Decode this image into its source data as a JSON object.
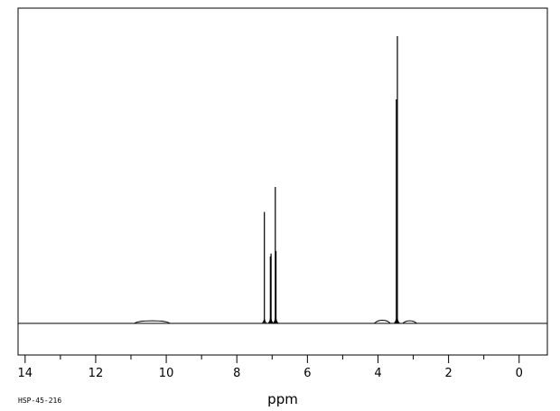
{
  "chart_data": {
    "type": "line",
    "title": "",
    "xlabel": "ppm",
    "ylabel": "",
    "xlim": [
      14.2,
      -0.8
    ],
    "ylim": [
      0,
      1
    ],
    "x_reversed": true,
    "grid": false,
    "ticks": {
      "major": [
        14,
        12,
        10,
        8,
        6,
        4,
        2,
        0
      ],
      "major_labels": [
        "14",
        "12",
        "10",
        "8",
        "6",
        "4",
        "2",
        "0"
      ],
      "minor": [
        13,
        11,
        9,
        7,
        5,
        3,
        1
      ]
    },
    "series": [
      {
        "peaks": [
          {
            "ppm": 7.22,
            "height": 0.388
          },
          {
            "ppm": 7.05,
            "height": 0.233
          },
          {
            "ppm": 7.03,
            "height": 0.243
          },
          {
            "ppm": 6.91,
            "height": 0.475
          },
          {
            "ppm": 6.89,
            "height": 0.252
          },
          {
            "ppm": 3.48,
            "height": 0.78
          },
          {
            "ppm": 3.45,
            "height": 1.0
          }
        ],
        "humps": [
          {
            "from": 10.9,
            "to": 9.9,
            "height": 0.006
          },
          {
            "from": 4.1,
            "to": 3.65,
            "height": 0.008
          },
          {
            "from": 3.3,
            "to": 2.9,
            "height": 0.006
          }
        ]
      }
    ]
  },
  "footer": {
    "code": "HSP-45-216"
  }
}
